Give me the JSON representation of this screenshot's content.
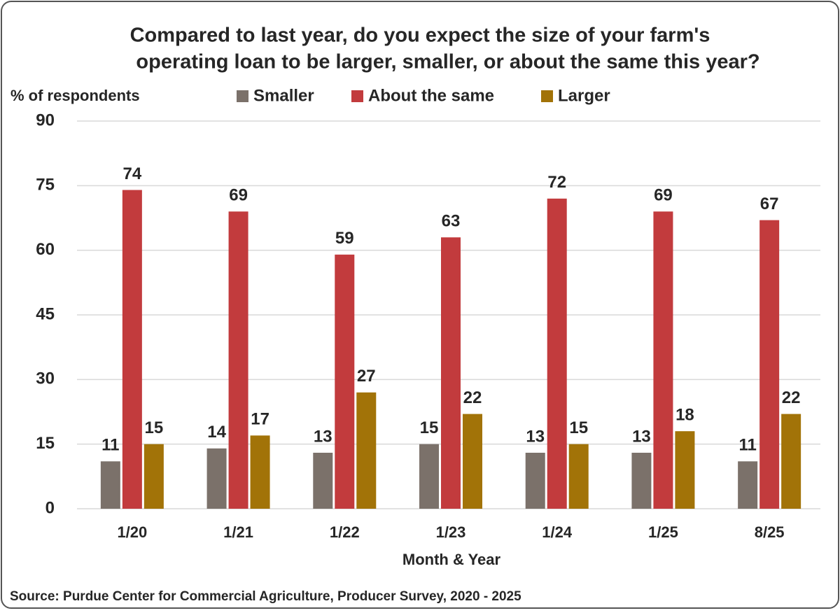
{
  "chart_data": {
    "type": "bar",
    "title": [
      "Compared to last year, do you expect the size of your farm's",
      "operating loan to be larger, smaller, or about the same this year?"
    ],
    "y_label": "% of respondents",
    "x_label": "Month & Year",
    "source": "Source: Purdue Center for Commercial Agriculture, Producer Survey, 2020 - 2025",
    "categories": [
      "1/20",
      "1/21",
      "1/22",
      "1/23",
      "1/24",
      "1/25",
      "8/25"
    ],
    "series": [
      {
        "name": "Smaller",
        "color": "#7b716a",
        "values": [
          11,
          14,
          13,
          15,
          13,
          13,
          11
        ]
      },
      {
        "name": "About the same",
        "color": "#c23b3d",
        "values": [
          74,
          69,
          59,
          63,
          72,
          69,
          67
        ]
      },
      {
        "name": "Larger",
        "color": "#a27308",
        "values": [
          15,
          17,
          27,
          22,
          15,
          18,
          22
        ]
      }
    ],
    "ylim": [
      0,
      90
    ],
    "yticks": [
      0,
      15,
      30,
      45,
      60,
      75,
      90
    ],
    "grid": true,
    "legend": "top"
  }
}
